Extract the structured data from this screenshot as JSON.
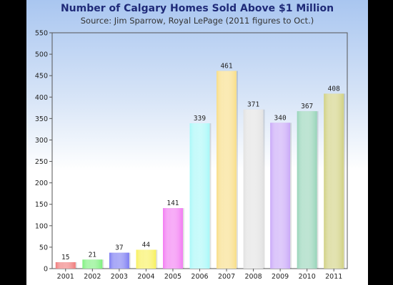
{
  "chart_data": {
    "type": "bar",
    "title": "Number of Calgary Homes Sold Above $1 Million",
    "subtitle": "Source: Jim Sparrow, Royal LePage (2011 figures to Oct.)",
    "categories": [
      "2001",
      "2002",
      "2003",
      "2004",
      "2005",
      "2006",
      "2007",
      "2008",
      "2009",
      "2010",
      "2011"
    ],
    "values": [
      15,
      21,
      37,
      44,
      141,
      339,
      461,
      371,
      340,
      367,
      408
    ],
    "colors": [
      "#f07a7a",
      "#7cf07c",
      "#7b7bf2",
      "#f8f05a",
      "#f27af2",
      "#a8f8f8",
      "#f8dd86",
      "#e2e2e2",
      "#c9a8f8",
      "#96d4b8",
      "#d0d080"
    ],
    "xlabel": "",
    "ylabel": "",
    "ylim": [
      0,
      550
    ],
    "yticks": [
      0,
      50,
      100,
      150,
      200,
      250,
      300,
      350,
      400,
      450,
      500,
      550
    ],
    "grid": false,
    "data_labels": true
  }
}
